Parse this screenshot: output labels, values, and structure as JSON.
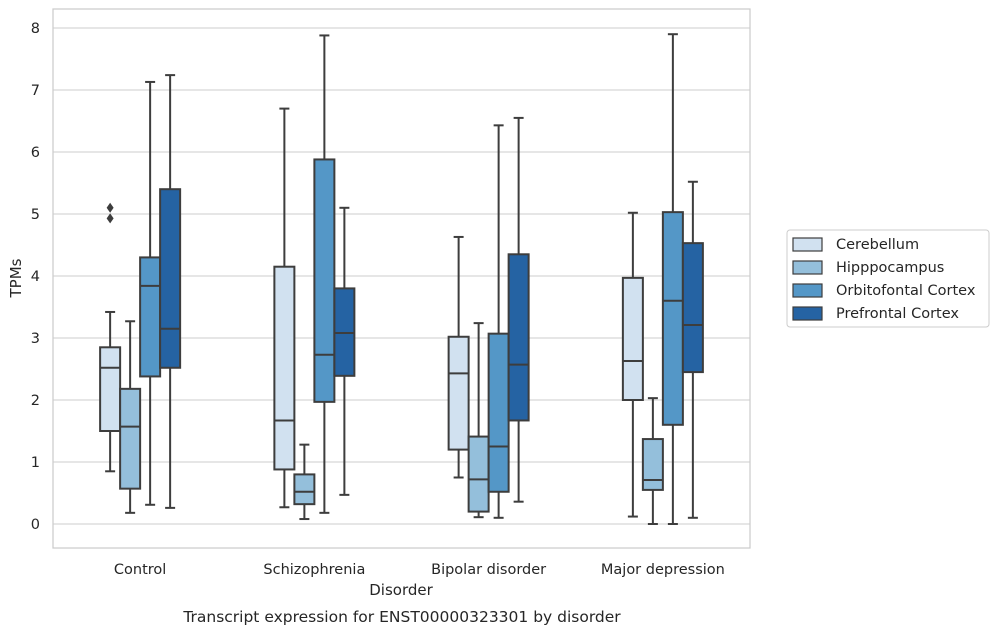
{
  "chart_data": {
    "type": "box",
    "caption": "Transcript expression for ENST00000323301 by disorder",
    "xlabel": "Disorder",
    "ylabel": "TPMs",
    "ylim": [
      -0.38,
      8.3
    ],
    "yticks": [
      0,
      1,
      2,
      3,
      4,
      5,
      6,
      7,
      8
    ],
    "grid": true,
    "legend_position": "right",
    "categories": [
      "Control",
      "Schizophrenia",
      "Bipolar disorder",
      "Major depression"
    ],
    "series": [
      {
        "name": "Cerebellum",
        "color": "#d1e1f0",
        "boxes": [
          {
            "whisker_low": 0.85,
            "q1": 1.5,
            "median": 2.52,
            "q3": 2.85,
            "whisker_high": 3.42,
            "outliers": [
              4.93,
              5.1
            ]
          },
          {
            "whisker_low": 0.27,
            "q1": 0.88,
            "median": 1.67,
            "q3": 4.15,
            "whisker_high": 6.7,
            "outliers": []
          },
          {
            "whisker_low": 0.75,
            "q1": 1.2,
            "median": 2.43,
            "q3": 3.02,
            "whisker_high": 4.63,
            "outliers": []
          },
          {
            "whisker_low": 0.12,
            "q1": 2.0,
            "median": 2.63,
            "q3": 3.97,
            "whisker_high": 5.02,
            "outliers": []
          }
        ]
      },
      {
        "name": "Hipppocampus",
        "color": "#94bfdb",
        "boxes": [
          {
            "whisker_low": 0.18,
            "q1": 0.57,
            "median": 1.57,
            "q3": 2.18,
            "whisker_high": 3.27,
            "outliers": []
          },
          {
            "whisker_low": 0.08,
            "q1": 0.32,
            "median": 0.52,
            "q3": 0.8,
            "whisker_high": 1.28,
            "outliers": []
          },
          {
            "whisker_low": 0.11,
            "q1": 0.2,
            "median": 0.72,
            "q3": 1.41,
            "whisker_high": 3.24,
            "outliers": []
          },
          {
            "whisker_low": 0.0,
            "q1": 0.55,
            "median": 0.71,
            "q3": 1.37,
            "whisker_high": 2.03,
            "outliers": []
          }
        ]
      },
      {
        "name": "Orbitofontal Cortex",
        "color": "#5497c7",
        "boxes": [
          {
            "whisker_low": 0.31,
            "q1": 2.38,
            "median": 3.84,
            "q3": 4.3,
            "whisker_high": 7.13,
            "outliers": []
          },
          {
            "whisker_low": 0.18,
            "q1": 1.97,
            "median": 2.73,
            "q3": 5.88,
            "whisker_high": 7.88,
            "outliers": []
          },
          {
            "whisker_low": 0.1,
            "q1": 0.52,
            "median": 1.25,
            "q3": 3.07,
            "whisker_high": 6.43,
            "outliers": []
          },
          {
            "whisker_low": 0.0,
            "q1": 1.6,
            "median": 3.6,
            "q3": 5.03,
            "whisker_high": 7.9,
            "outliers": []
          }
        ]
      },
      {
        "name": "Prefrontal Cortex",
        "color": "#2563a3",
        "boxes": [
          {
            "whisker_low": 0.26,
            "q1": 2.52,
            "median": 3.15,
            "q3": 5.4,
            "whisker_high": 7.24,
            "outliers": []
          },
          {
            "whisker_low": 0.47,
            "q1": 2.39,
            "median": 3.08,
            "q3": 3.8,
            "whisker_high": 5.1,
            "outliers": []
          },
          {
            "whisker_low": 0.36,
            "q1": 1.67,
            "median": 2.57,
            "q3": 4.35,
            "whisker_high": 6.55,
            "outliers": []
          },
          {
            "whisker_low": 0.1,
            "q1": 2.45,
            "median": 3.21,
            "q3": 4.53,
            "whisker_high": 5.52,
            "outliers": []
          }
        ]
      }
    ]
  }
}
